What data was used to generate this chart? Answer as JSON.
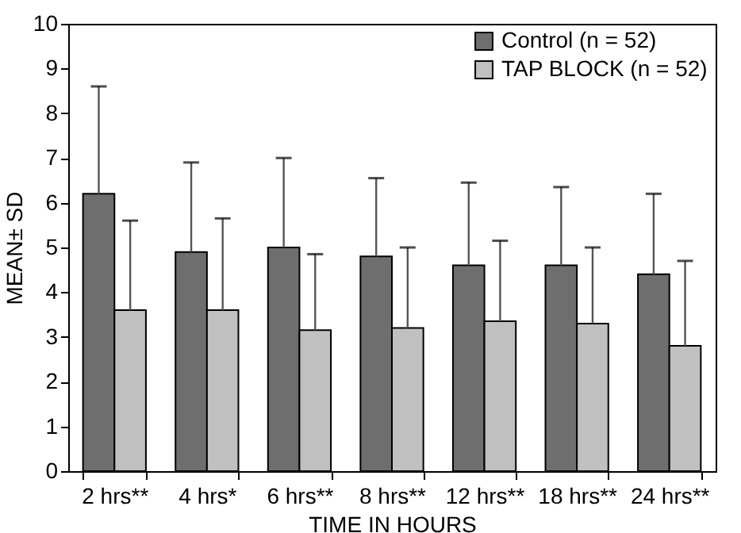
{
  "chart_data": {
    "type": "bar",
    "xlabel": "TIME IN HOURS",
    "ylabel": "MEAN± SD",
    "categories": [
      "2 hrs**",
      "4 hrs*",
      "6 hrs**",
      "8 hrs**",
      "12 hrs**",
      "18 hrs**",
      "24 hrs**"
    ],
    "series": [
      {
        "name": "Control (n = 52)",
        "color": "#6e6e6e",
        "values": [
          6.2,
          4.9,
          5.0,
          4.8,
          4.6,
          4.6,
          4.4
        ],
        "errors": [
          [
            6.2,
            8.6
          ],
          [
            4.9,
            6.9
          ],
          [
            5.0,
            7.0
          ],
          [
            4.8,
            6.55
          ],
          [
            4.6,
            6.45
          ],
          [
            4.6,
            6.35
          ],
          [
            4.4,
            6.2
          ]
        ]
      },
      {
        "name": "TAP BLOCK (n = 52)",
        "color": "#c0c0c0",
        "values": [
          3.6,
          3.6,
          3.15,
          3.2,
          3.35,
          3.3,
          2.8
        ],
        "errors": [
          [
            3.6,
            5.6
          ],
          [
            3.6,
            5.65
          ],
          [
            3.15,
            4.85
          ],
          [
            3.2,
            5.0
          ],
          [
            3.35,
            5.15
          ],
          [
            3.3,
            5.0
          ],
          [
            2.8,
            4.7
          ]
        ]
      }
    ],
    "ylim": [
      0,
      10
    ],
    "yticks": [
      0,
      1,
      2,
      3,
      4,
      5,
      6,
      7,
      8,
      9,
      10
    ],
    "grid": false,
    "legend": "top right"
  }
}
